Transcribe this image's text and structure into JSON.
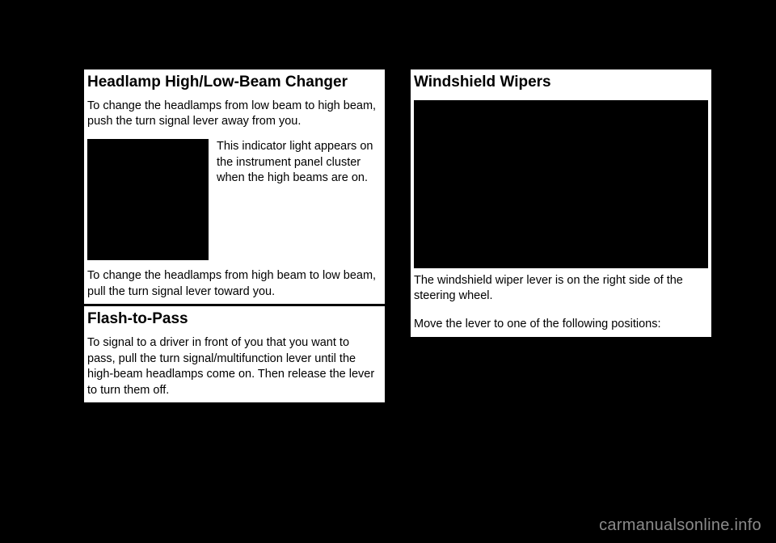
{
  "left": {
    "h1": "Headlamp High/Low-Beam Changer",
    "p1": "To change the headlamps from low beam to high beam, push the turn signal lever away from you.",
    "imgside": "This indicator light appears on the instrument panel cluster when the high beams are on.",
    "p2": "To change the headlamps from high beam to low beam, pull the turn signal lever toward you.",
    "h2": "Flash-to-Pass",
    "p3": "To signal to a driver in front of you that you want to pass, pull the turn signal/multifunction lever until the high-beam headlamps come on. Then release the lever to turn them off."
  },
  "right": {
    "h1": "Windshield Wipers",
    "p1": "The windshield wiper lever is on the right side of the steering wheel.",
    "p2": "Move the lever to one of the following positions:"
  },
  "watermark": "carmanualsonline.info"
}
